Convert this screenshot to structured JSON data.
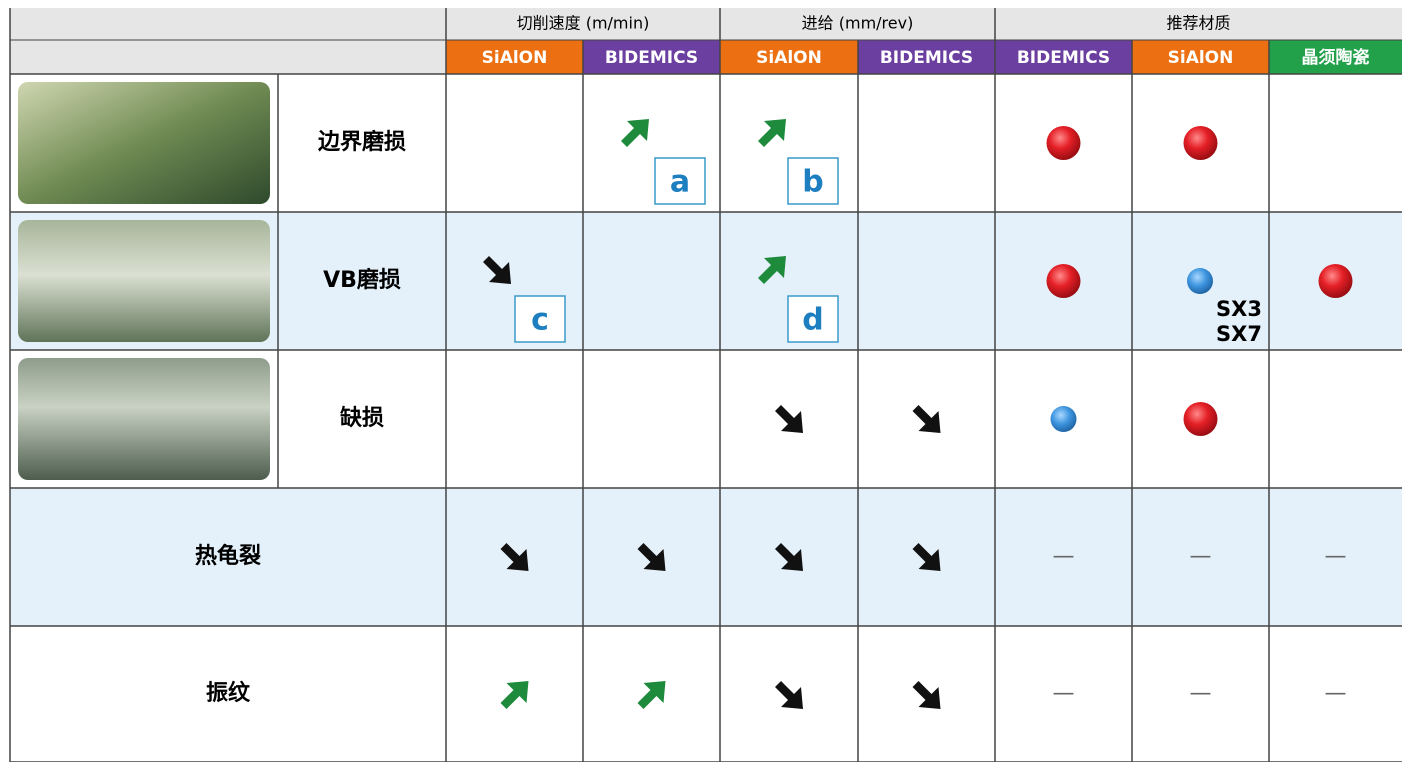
{
  "header": {
    "groups": [
      "切削速度 (m/min)",
      "进给 (mm/rev)",
      "推荐材质"
    ],
    "columns": [
      "SiAlON",
      "BIDEMICS",
      "SiAlON",
      "BIDEMICS",
      "BIDEMICS",
      "SiAlON",
      "晶须陶瓷"
    ]
  },
  "rows": [
    {
      "label": "边界磨损",
      "tags": [
        "a",
        "b"
      ]
    },
    {
      "label": "VB磨损",
      "tags": [
        "c",
        "d"
      ],
      "grades": [
        "SX3",
        "SX7"
      ]
    },
    {
      "label": "缺损"
    },
    {
      "label": "热龟裂",
      "dashes": [
        "—",
        "—",
        "—"
      ]
    },
    {
      "label": "振纹",
      "dashes": [
        "—",
        "—",
        "—"
      ]
    }
  ]
}
